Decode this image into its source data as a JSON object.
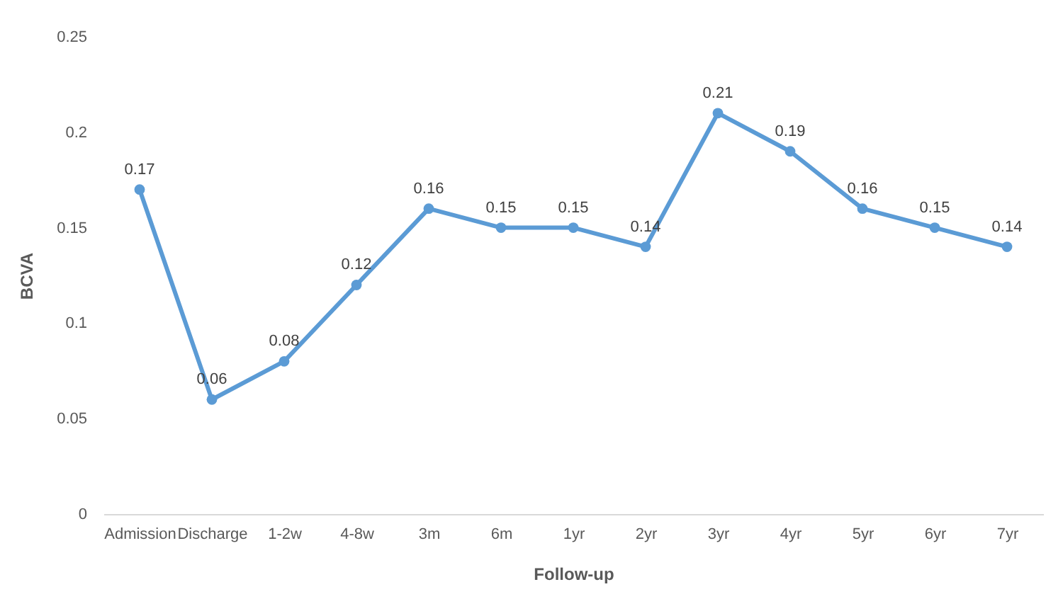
{
  "chart_data": {
    "type": "line",
    "xlabel": "Follow-up",
    "ylabel": "BCVA",
    "categories": [
      "Admission",
      "Discharge",
      "1-2w",
      "4-8w",
      "3m",
      "6m",
      "1yr",
      "2yr",
      "3yr",
      "4yr",
      "5yr",
      "6yr",
      "7yr"
    ],
    "series": [
      {
        "color": "#5b9bd5",
        "values": [
          0.17,
          0.06,
          0.08,
          0.12,
          0.16,
          0.15,
          0.15,
          0.14,
          0.21,
          0.19,
          0.16,
          0.15,
          0.14
        ]
      }
    ],
    "ylim": [
      0,
      0.25
    ],
    "yticks": [
      0,
      0.05,
      0.1,
      0.15,
      0.2,
      0.25
    ],
    "marker": "circle",
    "data_labels": true
  }
}
